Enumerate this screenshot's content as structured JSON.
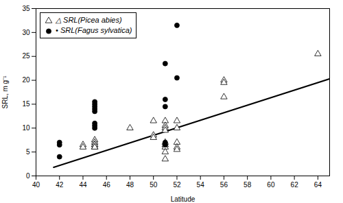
{
  "chart_data": {
    "type": "scatter",
    "xlabel": "Latitude",
    "ylabel": "SRL, m g⁻¹",
    "xlim": [
      40,
      65
    ],
    "ylim": [
      0,
      35
    ],
    "xticks": [
      40,
      42,
      44,
      46,
      48,
      50,
      52,
      54,
      56,
      58,
      60,
      62,
      64
    ],
    "yticks": [
      0,
      5,
      10,
      15,
      20,
      25,
      30,
      35
    ],
    "legend": "upper left",
    "series": [
      {
        "name": "△ SRL(Picea abies)",
        "type": "scatter",
        "marker": "triangle",
        "color": "white",
        "x": [
          44,
          44,
          45,
          45,
          45,
          45,
          45,
          45,
          48,
          50,
          50,
          50,
          51,
          51,
          51,
          51,
          51,
          51,
          51,
          51,
          51,
          52,
          52,
          52,
          52,
          52,
          56,
          56,
          56,
          64
        ],
        "values": [
          6.5,
          6.0,
          7.5,
          7.0,
          6.5,
          6.5,
          6.0,
          6.0,
          10.0,
          8.5,
          8.0,
          11.5,
          11.5,
          10.5,
          10.0,
          9.5,
          7.0,
          6.5,
          6.0,
          5.0,
          3.5,
          11.5,
          10.0,
          7.0,
          6.0,
          5.5,
          20.0,
          19.5,
          16.5,
          25.5
        ]
      },
      {
        "name": "• SRL(Fagus sylvatica)",
        "type": "scatter",
        "marker": "circle",
        "color": "black",
        "x": [
          42,
          42,
          42,
          45,
          45,
          45,
          45,
          45,
          45,
          45,
          45,
          51,
          51,
          51,
          51,
          51,
          52,
          52
        ],
        "values": [
          7.0,
          6.5,
          4.0,
          15.5,
          15.0,
          14.5,
          14.0,
          13.5,
          11.0,
          10.5,
          10.0,
          23.5,
          16.0,
          14.5,
          7.0,
          6.5,
          31.5,
          20.5
        ]
      },
      {
        "type": "line",
        "color": "black",
        "x": [
          41.5,
          65
        ],
        "values": [
          1.8,
          20.3
        ]
      }
    ]
  }
}
